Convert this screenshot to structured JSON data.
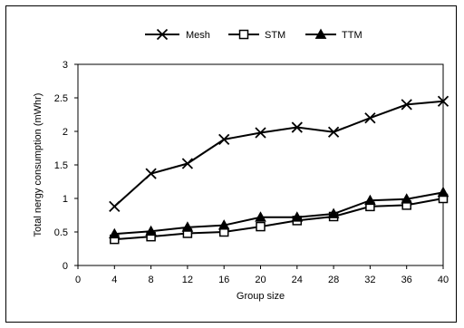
{
  "chart_data": {
    "type": "line",
    "xlabel": "Group size",
    "ylabel": "Total nergy consumption (mWhr)",
    "xlim": [
      0,
      40
    ],
    "ylim": [
      0,
      3
    ],
    "x_ticks": [
      "0",
      "4",
      "8",
      "12",
      "16",
      "20",
      "24",
      "28",
      "32",
      "36",
      "40"
    ],
    "y_ticks": [
      "0",
      "0.5",
      "1",
      "1.5",
      "2",
      "2.5",
      "3"
    ],
    "x": [
      4,
      8,
      12,
      16,
      20,
      24,
      28,
      32,
      36,
      40
    ],
    "series": [
      {
        "name": "Mesh",
        "marker": "x",
        "values": [
          0.88,
          1.37,
          1.52,
          1.88,
          1.98,
          2.06,
          1.99,
          2.2,
          2.4,
          2.45
        ]
      },
      {
        "name": "STM",
        "marker": "open-square",
        "values": [
          0.39,
          0.43,
          0.48,
          0.5,
          0.58,
          0.67,
          0.73,
          0.88,
          0.9,
          1.0
        ]
      },
      {
        "name": "TTM",
        "marker": "filled-triangle",
        "values": [
          0.47,
          0.51,
          0.57,
          0.6,
          0.72,
          0.72,
          0.77,
          0.97,
          0.99,
          1.09
        ]
      }
    ],
    "legend_position": "top",
    "grid": false
  }
}
